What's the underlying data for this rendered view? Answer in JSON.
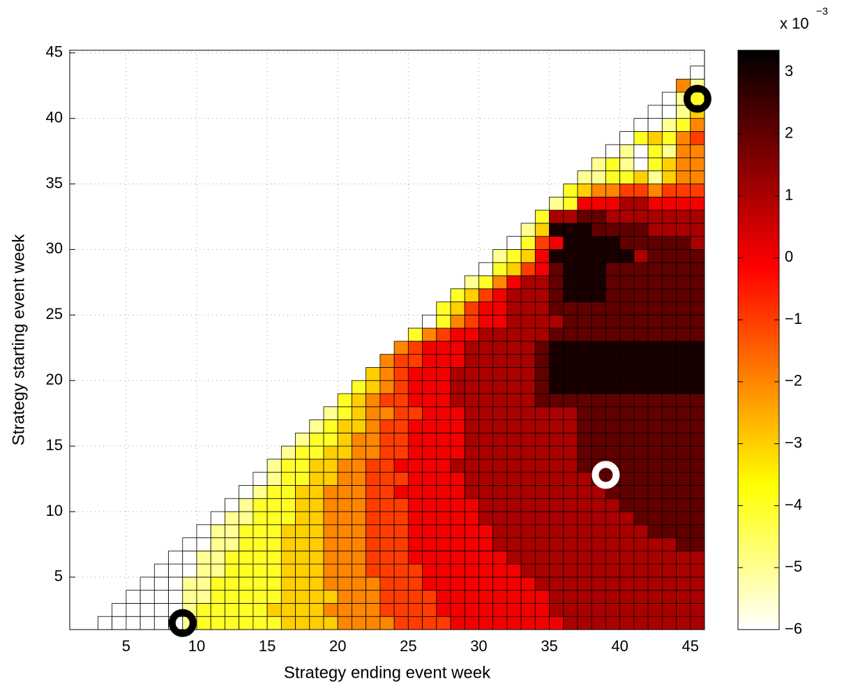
{
  "chart_data": {
    "type": "heatmap",
    "xlabel": "Strategy ending event week",
    "ylabel": "Strategy starting event week",
    "xlim": [
      1,
      46
    ],
    "ylim": [
      1,
      45.2
    ],
    "xticks": [
      5,
      10,
      15,
      20,
      25,
      30,
      35,
      40,
      45
    ],
    "yticks": [
      5,
      10,
      15,
      20,
      25,
      30,
      35,
      40,
      45
    ],
    "grid": true,
    "x": [
      3,
      4,
      5,
      6,
      7,
      8,
      9,
      10,
      11,
      12,
      13,
      14,
      15,
      16,
      17,
      18,
      19,
      20,
      21,
      22,
      23,
      24,
      25,
      26,
      27,
      28,
      29,
      30,
      31,
      32,
      33,
      34,
      35,
      36,
      37,
      38,
      39,
      40,
      41,
      42,
      43,
      44,
      45
    ],
    "y": [
      1,
      2,
      3,
      4,
      5,
      6,
      7,
      8,
      9,
      10,
      11,
      12,
      13,
      14,
      15,
      16,
      17,
      18,
      19,
      20,
      21,
      22,
      23,
      24,
      25,
      26,
      27,
      28,
      29,
      30,
      31,
      32,
      33,
      34,
      35,
      36,
      37,
      38,
      39,
      40,
      41,
      42,
      43
    ],
    "z": [
      [
        -6,
        -6,
        -6,
        -6,
        -6,
        -6,
        -5,
        -4,
        -4,
        -4,
        -4,
        -4,
        -4,
        -3,
        -3,
        -3,
        -3,
        -2,
        -2,
        -2,
        -2,
        -1,
        -1,
        -1,
        -1,
        0,
        0,
        0,
        0,
        0,
        0,
        0,
        0,
        1,
        1,
        1,
        1,
        1,
        1,
        1,
        1,
        1,
        1
      ],
      [
        -6,
        -6,
        -6,
        -6,
        -6,
        -5,
        -4,
        -4,
        -4,
        -4,
        -4,
        -3,
        -3,
        -3,
        -3,
        -2,
        -2,
        -2,
        -2,
        -1,
        -1,
        -1,
        -1,
        0,
        0,
        0,
        0,
        0,
        0,
        0,
        0,
        1,
        1,
        1,
        1,
        1,
        1,
        1,
        1,
        1,
        1,
        1
      ],
      [
        -6,
        -6,
        -6,
        -6,
        -5,
        -5,
        -4,
        -4,
        -4,
        -4,
        -4,
        -3,
        -3,
        -3,
        -3,
        -2,
        -2,
        -2,
        -1,
        -1,
        -1,
        -1,
        0,
        0,
        0,
        0,
        0,
        0,
        0,
        0,
        1,
        1,
        1,
        1,
        1,
        1,
        1,
        1,
        1,
        1,
        1
      ],
      [
        -6,
        -6,
        -6,
        -5,
        -5,
        -4,
        -4,
        -4,
        -4,
        -4,
        -3,
        -3,
        -3,
        -2,
        -2,
        -2,
        -2,
        -1,
        -1,
        -1,
        0,
        0,
        0,
        0,
        0,
        0,
        0,
        0,
        1,
        1,
        1,
        1,
        1,
        1,
        1,
        1,
        1,
        1,
        1,
        1
      ],
      [
        -6,
        -6,
        -6,
        -5,
        -5,
        -4,
        -4,
        -4,
        -4,
        -3,
        -3,
        -3,
        -2,
        -2,
        -2,
        -1,
        -1,
        -1,
        -1,
        0,
        0,
        0,
        0,
        0,
        0,
        0,
        1,
        1,
        1,
        1,
        1,
        1,
        1,
        1,
        1,
        1,
        1,
        1,
        1
      ],
      [
        -6,
        -6,
        -5,
        -5,
        -4,
        -4,
        -4,
        -4,
        -3,
        -3,
        -3,
        -2,
        -2,
        -2,
        -1,
        -1,
        -1,
        0,
        0,
        0,
        0,
        0,
        0,
        0,
        1,
        1,
        1,
        1,
        1,
        1,
        1,
        1,
        1,
        1,
        1,
        1,
        1,
        1
      ],
      [
        -6,
        -6,
        -5,
        -5,
        -4,
        -4,
        -4,
        -3,
        -3,
        -3,
        -2,
        -2,
        -2,
        -1,
        -1,
        -1,
        0,
        0,
        0,
        0,
        0,
        0,
        1,
        1,
        1,
        1,
        1,
        1,
        1,
        1,
        1,
        1,
        1,
        1,
        1,
        2,
        2
      ],
      [
        -6,
        -5,
        -5,
        -4,
        -4,
        -4,
        -3,
        -3,
        -3,
        -2,
        -2,
        -2,
        -1,
        -1,
        -1,
        0,
        0,
        0,
        0,
        0,
        0,
        1,
        1,
        1,
        1,
        1,
        1,
        1,
        1,
        1,
        1,
        1,
        2,
        2,
        2,
        2
      ],
      [
        -6,
        -5,
        -5,
        -4,
        -4,
        -4,
        -3,
        -3,
        -2,
        -2,
        -2,
        -1,
        -1,
        -1,
        0,
        0,
        0,
        0,
        0,
        1,
        1,
        1,
        1,
        1,
        1,
        1,
        1,
        1,
        1,
        1,
        2,
        2,
        2,
        2,
        2
      ],
      [
        -6,
        -5,
        -4,
        -4,
        -4,
        -3,
        -3,
        -2,
        -2,
        -2,
        -1,
        -1,
        -1,
        0,
        0,
        0,
        0,
        0,
        1,
        1,
        1,
        1,
        1,
        1,
        1,
        1,
        1,
        1,
        2,
        2,
        2,
        2,
        2,
        2
      ],
      [
        -6,
        -5,
        -4,
        -4,
        -3,
        -3,
        -2,
        -2,
        -2,
        -1,
        -1,
        0,
        0,
        0,
        0,
        0,
        1,
        1,
        1,
        1,
        1,
        1,
        1,
        1,
        1,
        1,
        2,
        2,
        2,
        2,
        2,
        2,
        2
      ],
      [
        -6,
        -5,
        -4,
        -4,
        -3,
        -3,
        -2,
        -2,
        -1,
        -1,
        -1,
        0,
        0,
        0,
        0,
        1,
        1,
        1,
        1,
        1,
        1,
        1,
        1,
        1,
        2,
        2,
        2,
        2,
        2,
        2,
        2,
        2
      ],
      [
        -5,
        -4,
        -4,
        -3,
        -3,
        -2,
        -2,
        -1,
        -1,
        0,
        0,
        0,
        0,
        1,
        1,
        1,
        1,
        1,
        1,
        1,
        1,
        1,
        2,
        2,
        2,
        2,
        2,
        2,
        2,
        2,
        2
      ],
      [
        -5,
        -4,
        -4,
        -3,
        -3,
        -2,
        -2,
        -1,
        -1,
        0,
        0,
        0,
        0,
        1,
        1,
        1,
        1,
        1,
        1,
        1,
        1,
        2,
        2,
        2,
        2,
        2,
        2,
        2,
        2,
        2
      ],
      [
        -5,
        -4,
        -4,
        -3,
        -2,
        -2,
        -1,
        -1,
        0,
        0,
        0,
        0,
        1,
        1,
        1,
        1,
        1,
        1,
        1,
        1,
        2,
        2,
        2,
        2,
        2,
        2,
        2,
        2,
        2
      ],
      [
        -5,
        -4,
        -3,
        -3,
        -2,
        -1,
        -1,
        0,
        0,
        0,
        0,
        1,
        1,
        1,
        1,
        1,
        1,
        1,
        1,
        2,
        2,
        2,
        2,
        2,
        2,
        2,
        2,
        2
      ],
      [
        -5,
        -4,
        -3,
        -2,
        -2,
        -1,
        -1,
        0,
        0,
        0,
        1,
        1,
        1,
        1,
        1,
        1,
        1,
        1,
        2,
        2,
        2,
        2,
        2,
        2,
        2,
        2,
        2
      ],
      [
        -4,
        -3,
        -2,
        -1,
        -1,
        0,
        0,
        0,
        1,
        1,
        1,
        1,
        1,
        1,
        2,
        2,
        2,
        2,
        2,
        2,
        2,
        2,
        2,
        2,
        2,
        2
      ],
      [
        -4,
        -3,
        -2,
        -1,
        0,
        0,
        0,
        1,
        1,
        1,
        1,
        1,
        1,
        2,
        3,
        3,
        3,
        3,
        3,
        3,
        3,
        3,
        3,
        3,
        3
      ],
      [
        -3,
        -2,
        -1,
        0,
        0,
        0,
        1,
        1,
        1,
        1,
        1,
        1,
        2,
        3,
        3,
        3,
        3,
        3,
        3,
        3,
        3,
        3,
        3,
        3
      ],
      [
        -2,
        -1,
        -1,
        0,
        0,
        0,
        1,
        1,
        1,
        1,
        1,
        2,
        3,
        3,
        3,
        3,
        3,
        3,
        3,
        3,
        3,
        3,
        3
      ],
      [
        -2,
        -1,
        0,
        0,
        0,
        1,
        1,
        1,
        1,
        1,
        2,
        3,
        3,
        3,
        3,
        3,
        3,
        3,
        3,
        3,
        3,
        3
      ],
      [
        -4,
        -2,
        -1,
        0,
        0,
        1,
        1,
        1,
        1,
        1,
        2,
        2,
        2,
        2,
        2,
        2,
        2,
        2,
        2,
        2,
        2
      ],
      [
        -6,
        -4,
        -2,
        -1,
        0,
        0,
        1,
        1,
        1,
        1,
        2,
        2,
        2,
        2,
        2,
        2,
        2,
        2,
        2,
        2
      ],
      [
        -4,
        -3,
        -1,
        0,
        0,
        1,
        1,
        1,
        2,
        2,
        2,
        2,
        2,
        2,
        2,
        2,
        2,
        2,
        2
      ],
      [
        -4,
        -3,
        -1,
        0,
        1,
        1,
        1,
        2,
        3,
        3,
        3,
        2,
        2,
        2,
        2,
        2,
        2,
        2
      ],
      [
        -5,
        -4,
        -2,
        0,
        1,
        1,
        2,
        3,
        3,
        3,
        2,
        2,
        2,
        2,
        2,
        2,
        2
      ],
      [
        -6,
        -4,
        -3,
        -1,
        0,
        2,
        3,
        3,
        3,
        2,
        2,
        2,
        2,
        2,
        2,
        2
      ],
      [
        -5,
        -4,
        -3,
        0,
        3,
        3,
        3,
        3,
        3,
        3,
        1,
        2,
        2,
        2,
        2
      ],
      [
        -6,
        -4,
        -1,
        0,
        3,
        3,
        3,
        3,
        2,
        2,
        2,
        2,
        2,
        1
      ],
      [
        -5,
        -3,
        3,
        3,
        3,
        2,
        2,
        2,
        2,
        1,
        1,
        1,
        1
      ],
      [
        -4,
        1,
        1,
        2,
        2,
        1,
        1,
        1,
        1,
        1,
        1,
        1
      ],
      [
        -5,
        -4,
        0,
        0,
        0,
        1,
        1,
        0,
        0,
        0,
        0
      ],
      [
        -4,
        -3,
        -2,
        -2,
        -1,
        -1,
        -2,
        -1,
        -1,
        -1
      ],
      [
        -5,
        -5,
        -4,
        -4,
        -3,
        -5,
        -3,
        -2,
        -2
      ],
      [
        -5,
        -4,
        -5,
        -6,
        -4,
        -3,
        -2,
        -2
      ],
      [
        -6,
        -5,
        -6,
        -4,
        -5,
        -2,
        -2
      ],
      [
        -6,
        -4,
        -3,
        -4,
        -2,
        -1
      ],
      [
        -6,
        -6,
        -5,
        -4,
        -2
      ],
      [
        -6,
        -6,
        -5,
        -3
      ],
      [
        -6,
        -5,
        -4
      ],
      [
        -2,
        -5
      ],
      [
        -6
      ]
    ],
    "markers": {
      "x": [
        9,
        45.5,
        39
      ],
      "y": [
        1.5,
        41.5,
        12.8
      ],
      "colors": [
        "#000000",
        "#000000",
        "#ffffff"
      ]
    },
    "colorbar": {
      "label": "x 10",
      "exponent": "−3",
      "clim": [
        -6,
        3.35
      ],
      "ticks": [
        {
          "value": -6,
          "label": "−6"
        },
        {
          "value": -5,
          "label": "−5"
        },
        {
          "value": -4,
          "label": "−4"
        },
        {
          "value": -3,
          "label": "−3"
        },
        {
          "value": -2,
          "label": "−2"
        },
        {
          "value": -1,
          "label": "−1"
        },
        0,
        1,
        2,
        3
      ]
    }
  }
}
